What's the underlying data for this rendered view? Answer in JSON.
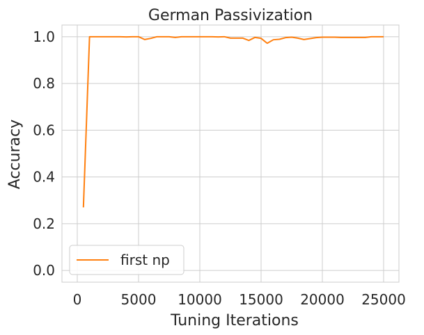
{
  "chart_data": {
    "type": "line",
    "title": "German Passivization",
    "xlabel": "Tuning Iterations",
    "ylabel": "Accuracy",
    "xlim": [
      -1250,
      26250
    ],
    "ylim": [
      -0.05,
      1.05
    ],
    "xticks": [
      0,
      5000,
      10000,
      15000,
      20000,
      25000
    ],
    "yticks": [
      0.0,
      0.2,
      0.4,
      0.6,
      0.8,
      1.0
    ],
    "xtick_labels": [
      "0",
      "5000",
      "10000",
      "15000",
      "20000",
      "25000"
    ],
    "ytick_labels": [
      "0.0",
      "0.2",
      "0.4",
      "0.6",
      "0.8",
      "1.0"
    ],
    "grid": true,
    "legend_position": "lower-left",
    "series": [
      {
        "name": "first np",
        "color": "#ff7f0e",
        "x": [
          500,
          1000,
          1500,
          2000,
          2500,
          3000,
          3500,
          4000,
          4500,
          5000,
          5500,
          6000,
          6500,
          7000,
          7500,
          8000,
          8500,
          9000,
          9500,
          10000,
          10500,
          11000,
          11500,
          12000,
          12500,
          13000,
          13500,
          14000,
          14500,
          15000,
          15500,
          16000,
          16500,
          17000,
          17500,
          18000,
          18500,
          19000,
          19500,
          20000,
          20500,
          21000,
          21500,
          22000,
          22500,
          23000,
          23500,
          24000,
          24500,
          25000
        ],
        "y": [
          0.27,
          1.0,
          1.0,
          1.0,
          1.0,
          1.0,
          1.0,
          0.999,
          1.0,
          1.0,
          0.988,
          0.993,
          1.0,
          1.0,
          1.0,
          0.997,
          1.0,
          1.0,
          1.0,
          1.0,
          1.0,
          1.0,
          0.999,
          1.0,
          0.994,
          0.994,
          0.994,
          0.984,
          0.997,
          0.993,
          0.972,
          0.987,
          0.989,
          0.996,
          0.998,
          0.994,
          0.988,
          0.992,
          0.996,
          0.998,
          0.998,
          0.998,
          0.997,
          0.997,
          0.997,
          0.997,
          0.997,
          1.0,
          1.0,
          1.0
        ]
      }
    ]
  }
}
